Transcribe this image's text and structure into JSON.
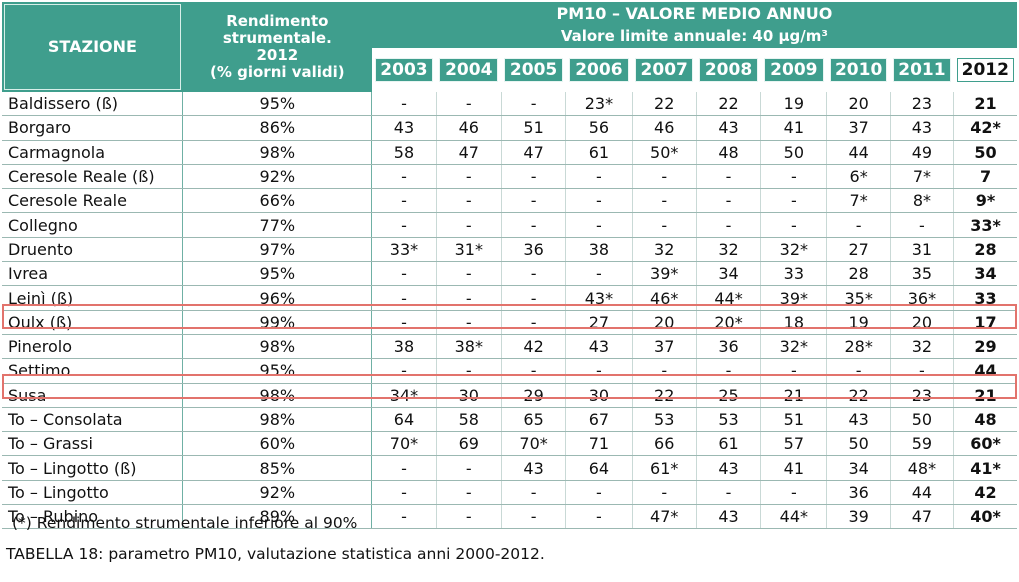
{
  "header": {
    "station_label": "STAZIONE",
    "efficiency_lines": [
      "Rendimento",
      "strumentale.",
      "2012",
      "(% giorni validi)"
    ],
    "title": "PM10 – VALORE MEDIO ANNUO",
    "subtitle": "Valore limite annuale: 40 µg/m³",
    "years": [
      "2003",
      "2004",
      "2005",
      "2006",
      "2007",
      "2008",
      "2009",
      "2010",
      "2011",
      "2012"
    ]
  },
  "rows": [
    {
      "station": "Baldissero (ß)",
      "efficiency": "95%",
      "values": [
        "-",
        "-",
        "-",
        "23*",
        "22",
        "22",
        "19",
        "20",
        "23",
        "21"
      ]
    },
    {
      "station": "Borgaro",
      "efficiency": "86%",
      "values": [
        "43",
        "46",
        "51",
        "56",
        "46",
        "43",
        "41",
        "37",
        "43",
        "42*"
      ]
    },
    {
      "station": "Carmagnola",
      "efficiency": "98%",
      "values": [
        "58",
        "47",
        "47",
        "61",
        "50*",
        "48",
        "50",
        "44",
        "49",
        "50"
      ]
    },
    {
      "station": "Ceresole Reale (ß)",
      "efficiency": "92%",
      "values": [
        "-",
        "-",
        "-",
        "-",
        "-",
        "-",
        "-",
        "6*",
        "7*",
        "7"
      ]
    },
    {
      "station": "Ceresole Reale",
      "efficiency": "66%",
      "values": [
        "-",
        "-",
        "-",
        "-",
        "-",
        "-",
        "-",
        "7*",
        "8*",
        "9*"
      ]
    },
    {
      "station": "Collegno",
      "efficiency": "77%",
      "values": [
        "-",
        "-",
        "-",
        "-",
        "-",
        "-",
        "-",
        "-",
        "-",
        "33*"
      ]
    },
    {
      "station": "Druento",
      "efficiency": "97%",
      "values": [
        "33*",
        "31*",
        "36",
        "38",
        "32",
        "32",
        "32*",
        "27",
        "31",
        "28"
      ]
    },
    {
      "station": "Ivrea",
      "efficiency": "95%",
      "values": [
        "-",
        "-",
        "-",
        "-",
        "39*",
        "34",
        "33",
        "28",
        "35",
        "34"
      ]
    },
    {
      "station": "Leinì (ß)",
      "efficiency": "96%",
      "values": [
        "-",
        "-",
        "-",
        "43*",
        "46*",
        "44*",
        "39*",
        "35*",
        "36*",
        "33"
      ]
    },
    {
      "station": "Oulx (ß)",
      "efficiency": "99%",
      "values": [
        "-",
        "-",
        "-",
        "27",
        "20",
        "20*",
        "18",
        "19",
        "20",
        "17"
      ]
    },
    {
      "station": "Pinerolo",
      "efficiency": "98%",
      "values": [
        "38",
        "38*",
        "42",
        "43",
        "37",
        "36",
        "32*",
        "28*",
        "32",
        "29"
      ]
    },
    {
      "station": "Settimo",
      "efficiency": "95%",
      "values": [
        "-",
        "-",
        "-",
        "-",
        "-",
        "-",
        "-",
        "-",
        "-",
        "44"
      ]
    },
    {
      "station": "Susa",
      "efficiency": "98%",
      "values": [
        "34*",
        "30",
        "29",
        "30",
        "22",
        "25",
        "21",
        "22",
        "23",
        "21"
      ]
    },
    {
      "station": "To – Consolata",
      "efficiency": "98%",
      "values": [
        "64",
        "58",
        "65",
        "67",
        "53",
        "53",
        "51",
        "43",
        "50",
        "48"
      ]
    },
    {
      "station": "To – Grassi",
      "efficiency": "60%",
      "values": [
        "70*",
        "69",
        "70*",
        "71",
        "66",
        "61",
        "57",
        "50",
        "59",
        "60*"
      ]
    },
    {
      "station": "To – Lingotto (ß)",
      "efficiency": "85%",
      "values": [
        "-",
        "-",
        "43",
        "64",
        "61*",
        "43",
        "41",
        "34",
        "48*",
        "41*"
      ]
    },
    {
      "station": "To – Lingotto",
      "efficiency": "92%",
      "values": [
        "-",
        "-",
        "-",
        "-",
        "-",
        "-",
        "-",
        "36",
        "44",
        "42"
      ]
    },
    {
      "station": "To – Rubino",
      "efficiency": "89%",
      "values": [
        "-",
        "-",
        "-",
        "-",
        "47*",
        "43",
        "44*",
        "39",
        "47",
        "40*"
      ]
    }
  ],
  "footnote": "(*) Rendimento strumentale inferiore al 90%",
  "caption": "TABELLA 18: parametro PM10, valutazione statistica anni 2000-2012.",
  "colors": {
    "header_bg": "#3f9e8d",
    "highlight": "#e2736c"
  }
}
